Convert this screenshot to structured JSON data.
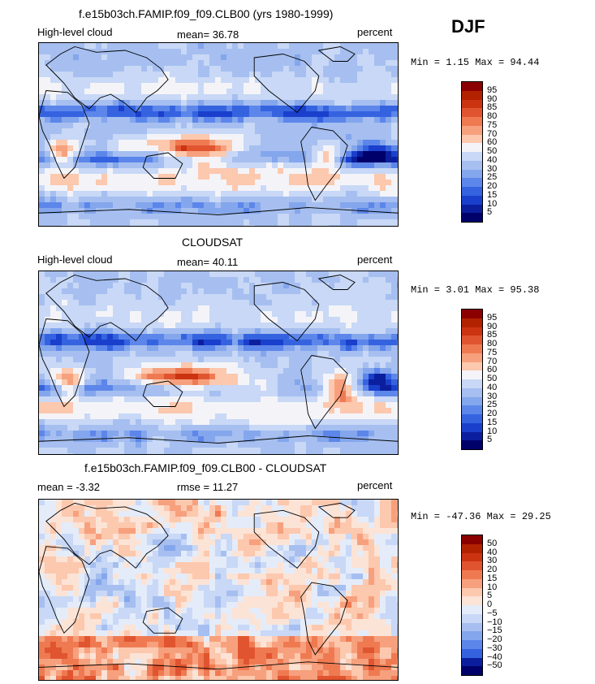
{
  "season": "DJF",
  "panels": [
    {
      "title": "f.e15b03ch.FAMIP.f09_f09.CLB00 (yrs 1980-1999)",
      "left": "High-level cloud",
      "center": "mean=  36.78",
      "right": "percent",
      "minmax": "Min =    1.15 Max =  94.44",
      "colorbar": {
        "labels": [
          "95",
          "90",
          "85",
          "80",
          "75",
          "70",
          "60",
          "50",
          "40",
          "30",
          "25",
          "20",
          "15",
          "10",
          "5"
        ],
        "colors": [
          "#8b0000",
          "#b22200",
          "#cc3311",
          "#e05530",
          "#ef7a52",
          "#f7a07d",
          "#fcc8ae",
          "#f4f4f8",
          "#c8d8f6",
          "#a6bff0",
          "#84a6ec",
          "#5c86ea",
          "#3563e0",
          "#1a3fcc",
          "#0b1f9e",
          "#00006b"
        ]
      }
    },
    {
      "title": "CLOUDSAT",
      "left": "High-level cloud",
      "center": "mean=  40.11",
      "right": "percent",
      "minmax": "Min =    3.01 Max =  95.38",
      "colorbar": {
        "labels": [
          "95",
          "90",
          "85",
          "80",
          "75",
          "70",
          "60",
          "50",
          "40",
          "30",
          "25",
          "20",
          "15",
          "10",
          "5"
        ],
        "colors": [
          "#8b0000",
          "#b22200",
          "#cc3311",
          "#e05530",
          "#ef7a52",
          "#f7a07d",
          "#fcc8ae",
          "#f4f4f8",
          "#c8d8f6",
          "#a6bff0",
          "#84a6ec",
          "#5c86ea",
          "#3563e0",
          "#1a3fcc",
          "#0b1f9e",
          "#00006b"
        ]
      }
    },
    {
      "title": "f.e15b03ch.FAMIP.f09_f09.CLB00 - CLOUDSAT",
      "left": "mean =   -3.32",
      "center": "rmse =   11.27",
      "right": "percent",
      "minmax": "Min = -47.36 Max =  29.25",
      "colorbar": {
        "labels": [
          "50",
          "40",
          "30",
          "20",
          "15",
          "10",
          "5",
          "0",
          "−5",
          "−10",
          "−15",
          "−20",
          "−30",
          "−40",
          "−50"
        ],
        "colors": [
          "#8b0000",
          "#b22200",
          "#cc3311",
          "#e05530",
          "#ef7a52",
          "#f7a07d",
          "#fcc8ae",
          "#fbe3d6",
          "#e4ecfa",
          "#c8d8f6",
          "#a6bff0",
          "#84a6ec",
          "#5c86ea",
          "#3563e0",
          "#0b1f9e",
          "#00006b"
        ]
      }
    }
  ]
}
